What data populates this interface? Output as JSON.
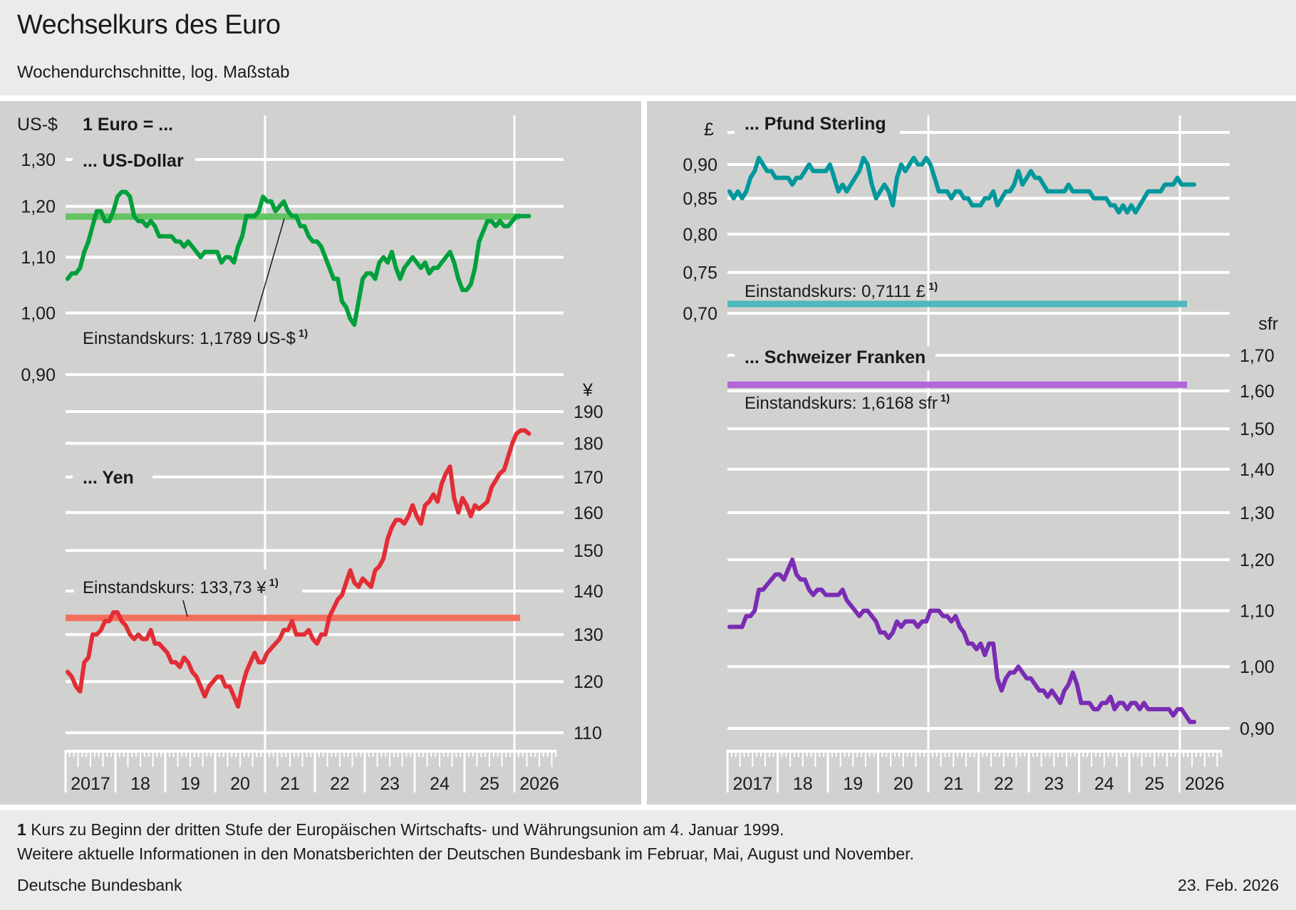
{
  "header": {
    "title": "Wechselkurs des Euro",
    "subtitle": "Wochendurchschnitte, log. Maßstab"
  },
  "footer": {
    "footnote_number": "1",
    "footnote_text": "Kurs zu Beginn der dritten Stufe der Europäischen Wirtschafts- und Währungsunion am 4. Januar 1999.",
    "info_text": "Weitere aktuelle Informationen in den Monatsberichten der Deutschen Bundesbank im Februar, Mai, August und November.",
    "source": "Deutsche Bundesbank",
    "date": "23. Feb. 2026"
  },
  "chart_data": [
    {
      "type": "line",
      "id": "usd",
      "panel": "left-top",
      "heading": "1 Euro = ...",
      "title": "... US-Dollar",
      "unit_label": "US-$",
      "yscale": "log",
      "ylim": [
        0.9,
        1.3
      ],
      "yticks": [
        1.3,
        1.2,
        1.1,
        1.0,
        0.9
      ],
      "ytick_labels": [
        "1,30",
        "1,20",
        "1,10",
        "1,00",
        "0,90"
      ],
      "axis_side": "left",
      "color": "#00a03c",
      "reference": {
        "label": "Einstandskurs: 1,1789 US-$",
        "footnote": "1)",
        "value": 1.1789,
        "color": "#62c462"
      },
      "x_start": "2017-01",
      "x_step": "month",
      "values": [
        1.06,
        1.07,
        1.07,
        1.08,
        1.11,
        1.13,
        1.16,
        1.19,
        1.19,
        1.17,
        1.17,
        1.19,
        1.22,
        1.23,
        1.23,
        1.22,
        1.18,
        1.17,
        1.17,
        1.16,
        1.17,
        1.16,
        1.14,
        1.14,
        1.14,
        1.14,
        1.13,
        1.13,
        1.12,
        1.13,
        1.12,
        1.11,
        1.1,
        1.11,
        1.11,
        1.11,
        1.11,
        1.09,
        1.1,
        1.1,
        1.09,
        1.12,
        1.14,
        1.18,
        1.18,
        1.18,
        1.19,
        1.22,
        1.21,
        1.21,
        1.19,
        1.2,
        1.21,
        1.19,
        1.18,
        1.18,
        1.16,
        1.16,
        1.14,
        1.13,
        1.13,
        1.12,
        1.1,
        1.08,
        1.06,
        1.06,
        1.02,
        1.01,
        0.99,
        0.98,
        1.02,
        1.06,
        1.07,
        1.07,
        1.06,
        1.09,
        1.1,
        1.09,
        1.11,
        1.08,
        1.06,
        1.08,
        1.09,
        1.1,
        1.09,
        1.08,
        1.09,
        1.07,
        1.08,
        1.08,
        1.09,
        1.1,
        1.11,
        1.09,
        1.06,
        1.04,
        1.04,
        1.05,
        1.08,
        1.13,
        1.15,
        1.17,
        1.17,
        1.16,
        1.17,
        1.16,
        1.16,
        1.17,
        1.18,
        1.18,
        1.18,
        1.18
      ]
    },
    {
      "type": "line",
      "id": "jpy",
      "panel": "left-bottom",
      "title": "... Yen",
      "unit_label": "¥",
      "yscale": "log",
      "ylim": [
        110,
        190
      ],
      "yticks": [
        190,
        180,
        170,
        160,
        150,
        140,
        130,
        120,
        110
      ],
      "ytick_labels": [
        "190",
        "180",
        "170",
        "160",
        "150",
        "140",
        "130",
        "120",
        "110"
      ],
      "axis_side": "right",
      "color": "#e32d35",
      "reference": {
        "label": "Einstandskurs: 133,73 ¥",
        "footnote": "1)",
        "value": 133.73,
        "color": "#f56e5c"
      },
      "x_start": "2017-01",
      "x_step": "month",
      "values": [
        122,
        121,
        119,
        118,
        124,
        125,
        130,
        130,
        131,
        133,
        133,
        135,
        135,
        133,
        132,
        130,
        129,
        130,
        129,
        129,
        131,
        128,
        128,
        127,
        126,
        124,
        124,
        123,
        125,
        124,
        122,
        121,
        119,
        117,
        119,
        120,
        121,
        121,
        119,
        119,
        117,
        115,
        119,
        122,
        124,
        126,
        124,
        124,
        126,
        127,
        128,
        129,
        131,
        131,
        133,
        130,
        130,
        130,
        131,
        129,
        128,
        130,
        130,
        134,
        136,
        138,
        139,
        142,
        145,
        142,
        141,
        143,
        142,
        141,
        145,
        146,
        148,
        153,
        156,
        158,
        158,
        157,
        159,
        162,
        159,
        157,
        162,
        163,
        165,
        163,
        168,
        171,
        173,
        164,
        160,
        164,
        162,
        159,
        162,
        161,
        162,
        163,
        167,
        169,
        171,
        172,
        176,
        180,
        183,
        184,
        184,
        183
      ]
    },
    {
      "type": "line",
      "id": "gbp",
      "panel": "right-top",
      "title": "... Pfund Sterling",
      "unit_label": "£",
      "yscale": "log",
      "ylim": [
        0.7,
        0.95
      ],
      "yticks": [
        0.95,
        0.9,
        0.85,
        0.8,
        0.75,
        0.7
      ],
      "ytick_labels": [
        "",
        "0,90",
        "0,85",
        "0,80",
        "0,75",
        "0,70"
      ],
      "axis_side": "left",
      "color": "#00989c",
      "reference": {
        "label": "Einstandskurs: 0,7111 £",
        "footnote": "1)",
        "value": 0.7111,
        "color": "#4eb8bc"
      },
      "x_start": "2017-01",
      "x_step": "month",
      "values": [
        0.86,
        0.85,
        0.86,
        0.85,
        0.86,
        0.88,
        0.89,
        0.91,
        0.9,
        0.89,
        0.89,
        0.88,
        0.88,
        0.88,
        0.88,
        0.87,
        0.88,
        0.88,
        0.89,
        0.9,
        0.89,
        0.89,
        0.89,
        0.89,
        0.9,
        0.88,
        0.86,
        0.87,
        0.86,
        0.87,
        0.88,
        0.89,
        0.91,
        0.9,
        0.87,
        0.85,
        0.86,
        0.87,
        0.86,
        0.84,
        0.88,
        0.9,
        0.89,
        0.9,
        0.91,
        0.9,
        0.9,
        0.91,
        0.9,
        0.88,
        0.86,
        0.86,
        0.86,
        0.85,
        0.86,
        0.86,
        0.85,
        0.85,
        0.84,
        0.84,
        0.84,
        0.85,
        0.85,
        0.86,
        0.84,
        0.85,
        0.86,
        0.86,
        0.87,
        0.89,
        0.87,
        0.88,
        0.89,
        0.88,
        0.88,
        0.87,
        0.86,
        0.86,
        0.86,
        0.86,
        0.86,
        0.87,
        0.86,
        0.86,
        0.86,
        0.86,
        0.86,
        0.85,
        0.85,
        0.85,
        0.85,
        0.84,
        0.84,
        0.83,
        0.84,
        0.83,
        0.84,
        0.83,
        0.84,
        0.85,
        0.86,
        0.86,
        0.86,
        0.86,
        0.87,
        0.87,
        0.87,
        0.88,
        0.87,
        0.87,
        0.87,
        0.87
      ]
    },
    {
      "type": "line",
      "id": "chf",
      "panel": "right-bottom",
      "title": "... Schweizer Franken",
      "unit_label": "sfr",
      "yscale": "log",
      "ylim": [
        0.9,
        1.7
      ],
      "yticks": [
        1.7,
        1.6,
        1.5,
        1.4,
        1.3,
        1.2,
        1.1,
        1.0,
        0.9
      ],
      "ytick_labels": [
        "1,70",
        "1,60",
        "1,50",
        "1,40",
        "1,30",
        "1,20",
        "1,10",
        "1,00",
        "0,90"
      ],
      "axis_side": "right",
      "color": "#7a2cb4",
      "reference": {
        "label": "Einstandskurs: 1,6168 sfr",
        "footnote": "1)",
        "value": 1.6168,
        "color": "#b266d9"
      },
      "x_start": "2017-01",
      "x_step": "month",
      "values": [
        1.07,
        1.07,
        1.07,
        1.07,
        1.09,
        1.09,
        1.1,
        1.14,
        1.14,
        1.15,
        1.16,
        1.17,
        1.17,
        1.16,
        1.18,
        1.2,
        1.17,
        1.16,
        1.16,
        1.14,
        1.13,
        1.14,
        1.14,
        1.13,
        1.13,
        1.13,
        1.13,
        1.14,
        1.12,
        1.11,
        1.1,
        1.09,
        1.1,
        1.1,
        1.09,
        1.08,
        1.06,
        1.06,
        1.05,
        1.06,
        1.08,
        1.07,
        1.08,
        1.08,
        1.08,
        1.07,
        1.08,
        1.08,
        1.1,
        1.1,
        1.1,
        1.09,
        1.09,
        1.08,
        1.09,
        1.07,
        1.06,
        1.04,
        1.04,
        1.03,
        1.04,
        1.02,
        1.04,
        1.04,
        0.98,
        0.96,
        0.98,
        0.99,
        0.99,
        1.0,
        0.99,
        0.98,
        0.98,
        0.97,
        0.96,
        0.96,
        0.95,
        0.96,
        0.95,
        0.94,
        0.96,
        0.97,
        0.99,
        0.97,
        0.94,
        0.94,
        0.94,
        0.93,
        0.93,
        0.94,
        0.94,
        0.95,
        0.93,
        0.94,
        0.94,
        0.93,
        0.94,
        0.94,
        0.93,
        0.94,
        0.93,
        0.93,
        0.93,
        0.93,
        0.93,
        0.93,
        0.92,
        0.93,
        0.93,
        0.92,
        0.91,
        0.91
      ]
    }
  ],
  "x_axis": {
    "range": [
      "2017-01",
      "2026-10"
    ],
    "year_labels": [
      "2017",
      "18",
      "19",
      "20",
      "21",
      "22",
      "23",
      "24",
      "25",
      "2026"
    ],
    "highlight_years": [
      "21",
      "2026"
    ]
  }
}
